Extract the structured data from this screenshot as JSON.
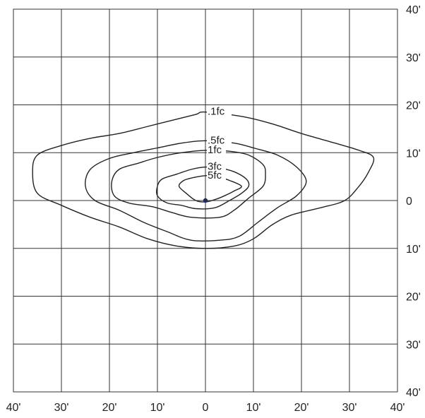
{
  "diagram": {
    "type": "isofootcandle-plot",
    "x_ticks": [
      "40'",
      "30'",
      "20'",
      "10'",
      "0",
      "10'",
      "20'",
      "30'",
      "40'"
    ],
    "y_ticks": [
      "40'",
      "30'",
      "20'",
      "10'",
      "0",
      "10'",
      "20'",
      "30'",
      "40'"
    ],
    "contours": [
      {
        "label": ".1fc",
        "points": [
          [
            0,
            18.5
          ],
          [
            8,
            17.5
          ],
          [
            14,
            16
          ],
          [
            20,
            14
          ],
          [
            27,
            12
          ],
          [
            32,
            10.5
          ],
          [
            35,
            9
          ],
          [
            34,
            6
          ],
          [
            32,
            3
          ],
          [
            29,
            0
          ],
          [
            24,
            -1.5
          ],
          [
            18,
            -3
          ],
          [
            14,
            -5
          ],
          [
            10,
            -8
          ],
          [
            6,
            -9.5
          ],
          [
            0,
            -10
          ],
          [
            -6,
            -9.5
          ],
          [
            -12,
            -8
          ],
          [
            -18,
            -5.5
          ],
          [
            -24,
            -3.5
          ],
          [
            -30,
            -1
          ],
          [
            -35,
            1.5
          ],
          [
            -36,
            6
          ],
          [
            -35,
            9.5
          ],
          [
            -30,
            11.5
          ],
          [
            -24,
            13
          ],
          [
            -18,
            14
          ],
          [
            -12,
            15.5
          ],
          [
            -6,
            17
          ],
          [
            -2,
            18
          ],
          [
            0,
            18.5
          ]
        ]
      },
      {
        "label": ".5fc",
        "points": [
          [
            0,
            12.5
          ],
          [
            6,
            12
          ],
          [
            10,
            11
          ],
          [
            15,
            9.5
          ],
          [
            19,
            7
          ],
          [
            21,
            4
          ],
          [
            19,
            1
          ],
          [
            15,
            -1.5
          ],
          [
            11,
            -4.5
          ],
          [
            7,
            -7.5
          ],
          [
            3,
            -8.3
          ],
          [
            -3,
            -8.3
          ],
          [
            -8,
            -6.5
          ],
          [
            -13,
            -4.5
          ],
          [
            -18,
            -2
          ],
          [
            -23,
            0
          ],
          [
            -25,
            3
          ],
          [
            -24,
            6.5
          ],
          [
            -20,
            8.8
          ],
          [
            -15,
            10
          ],
          [
            -10,
            11
          ],
          [
            -5,
            12
          ],
          [
            0,
            12.5
          ]
        ]
      },
      {
        "label": "1fc",
        "points": [
          [
            0,
            10.5
          ],
          [
            5,
            10.3
          ],
          [
            9,
            9.5
          ],
          [
            12,
            7.5
          ],
          [
            12.5,
            5.5
          ],
          [
            12,
            3
          ],
          [
            9,
            0.5
          ],
          [
            6,
            -2
          ],
          [
            3,
            -3.5
          ],
          [
            -3,
            -3.5
          ],
          [
            -7,
            -2.5
          ],
          [
            -11,
            -1.3
          ],
          [
            -16,
            -0.5
          ],
          [
            -19,
            1
          ],
          [
            -19.5,
            4
          ],
          [
            -18,
            6.5
          ],
          [
            -14,
            7.8
          ],
          [
            -10,
            9
          ],
          [
            -5,
            10
          ],
          [
            0,
            10.5
          ]
        ]
      },
      {
        "label": "3fc",
        "points": [
          [
            0,
            7
          ],
          [
            3,
            6.8
          ],
          [
            6,
            6
          ],
          [
            8.5,
            4.5
          ],
          [
            9,
            3
          ],
          [
            7.5,
            1.5
          ],
          [
            5,
            0
          ],
          [
            2,
            -1.5
          ],
          [
            -2,
            -1.7
          ],
          [
            -5,
            -1
          ],
          [
            -8,
            -0.5
          ],
          [
            -10,
            1
          ],
          [
            -10,
            3
          ],
          [
            -9,
            4.5
          ],
          [
            -6,
            5.5
          ],
          [
            -3,
            6.5
          ],
          [
            0,
            7
          ]
        ]
      },
      {
        "label": "5fc",
        "points": [
          [
            0,
            5.2
          ],
          [
            2.5,
            5
          ],
          [
            5,
            4.2
          ],
          [
            7.5,
            3
          ],
          [
            6,
            2
          ],
          [
            4,
            1
          ],
          [
            2,
            0.2
          ],
          [
            0,
            -0.3
          ],
          [
            -2,
            0
          ],
          [
            -4,
            1.5
          ],
          [
            -5.5,
            3
          ],
          [
            -4.5,
            4.2
          ],
          [
            -2.5,
            4.8
          ],
          [
            0,
            5.2
          ]
        ]
      }
    ],
    "luminaire": {
      "x": 0,
      "y": 0,
      "color": "#1f2a5c"
    },
    "line_color": "#222222",
    "grid_color": "#333333"
  }
}
